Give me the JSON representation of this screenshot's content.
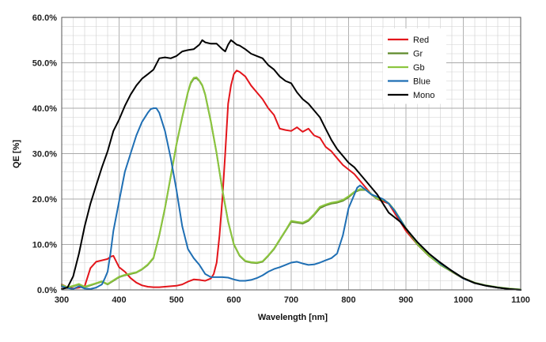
{
  "chart_data": {
    "type": "line",
    "title": "",
    "xlabel": "Wavelength [nm]",
    "ylabel": "QE [%]",
    "xlim": [
      300,
      1100
    ],
    "ylim": [
      0,
      60
    ],
    "x_ticks": [
      "300",
      "400",
      "500",
      "600",
      "700",
      "800",
      "900",
      "1000",
      "1100"
    ],
    "y_ticks": [
      "0.0%",
      "10.0%",
      "20.0%",
      "30.0%",
      "40.0%",
      "50.0%",
      "60.0%"
    ],
    "grid": "on",
    "legend": "top-right",
    "series": [
      {
        "name": "Red",
        "color": "#e3151b",
        "x": [
          300,
          310,
          320,
          330,
          340,
          350,
          360,
          370,
          380,
          385,
          390,
          400,
          410,
          420,
          430,
          440,
          450,
          460,
          470,
          480,
          490,
          500,
          510,
          520,
          530,
          540,
          550,
          560,
          565,
          570,
          575,
          580,
          585,
          590,
          595,
          600,
          605,
          610,
          620,
          630,
          640,
          650,
          660,
          670,
          680,
          690,
          700,
          710,
          720,
          730,
          740,
          750,
          760,
          770,
          780,
          790,
          800,
          810,
          820,
          830,
          840,
          850,
          860,
          870,
          880,
          890,
          900,
          920,
          940,
          960,
          980,
          1000,
          1020,
          1040,
          1060,
          1080,
          1100
        ],
        "values": [
          1.2,
          0.6,
          0.3,
          0.5,
          0.8,
          4.8,
          6.2,
          6.5,
          6.8,
          7.3,
          7.5,
          5.0,
          4.0,
          2.6,
          1.6,
          1.0,
          0.7,
          0.6,
          0.6,
          0.7,
          0.8,
          0.9,
          1.2,
          1.8,
          2.3,
          2.2,
          2.0,
          2.5,
          3.5,
          6.0,
          12.0,
          20.0,
          30.0,
          41.0,
          45.0,
          47.5,
          48.3,
          48.0,
          47.0,
          45.0,
          43.5,
          42.0,
          40.0,
          38.5,
          35.5,
          35.2,
          35.0,
          35.8,
          34.8,
          35.5,
          34.0,
          33.5,
          31.5,
          30.5,
          29.0,
          27.5,
          26.5,
          25.5,
          24.0,
          22.5,
          21.0,
          20.0,
          19.5,
          19.0,
          17.0,
          15.0,
          13.0,
          10.0,
          7.5,
          5.8,
          4.0,
          2.5,
          1.5,
          0.9,
          0.5,
          0.2,
          0.0
        ]
      },
      {
        "name": "Gr",
        "color": "#5e8a2a",
        "x": [
          300,
          310,
          320,
          330,
          340,
          350,
          360,
          370,
          380,
          385,
          390,
          400,
          410,
          420,
          430,
          440,
          450,
          460,
          470,
          480,
          490,
          500,
          510,
          520,
          525,
          530,
          535,
          540,
          545,
          550,
          560,
          570,
          580,
          590,
          600,
          610,
          620,
          630,
          640,
          650,
          660,
          670,
          680,
          690,
          700,
          710,
          720,
          730,
          740,
          750,
          760,
          770,
          780,
          790,
          800,
          810,
          820,
          830,
          840,
          850,
          860,
          870,
          880,
          890,
          900,
          920,
          940,
          960,
          980,
          1000,
          1020,
          1040,
          1060,
          1080,
          1100
        ],
        "values": [
          1.0,
          0.5,
          0.8,
          1.2,
          0.6,
          1.0,
          1.4,
          1.8,
          1.2,
          1.6,
          2.0,
          2.8,
          3.2,
          3.5,
          3.8,
          4.5,
          5.5,
          7.0,
          12.0,
          18.0,
          25.0,
          32.0,
          38.0,
          43.5,
          45.5,
          46.5,
          46.6,
          46.0,
          45.0,
          43.0,
          37.0,
          30.0,
          22.0,
          15.0,
          10.0,
          7.5,
          6.3,
          6.0,
          5.9,
          6.2,
          7.5,
          9.0,
          11.0,
          13.0,
          15.0,
          14.8,
          14.6,
          15.2,
          16.5,
          18.0,
          18.6,
          19.0,
          19.2,
          19.6,
          20.4,
          21.5,
          22.0,
          22.0,
          21.0,
          20.0,
          19.8,
          19.0,
          17.5,
          15.5,
          13.5,
          10.0,
          7.5,
          5.5,
          4.0,
          2.5,
          1.5,
          0.9,
          0.5,
          0.2,
          0.0
        ]
      },
      {
        "name": "Gb",
        "color": "#8cc63f",
        "x": [
          300,
          310,
          320,
          330,
          340,
          350,
          360,
          370,
          380,
          385,
          390,
          400,
          410,
          420,
          430,
          440,
          450,
          460,
          470,
          480,
          490,
          500,
          510,
          520,
          525,
          530,
          535,
          540,
          545,
          550,
          560,
          570,
          580,
          590,
          600,
          610,
          620,
          630,
          640,
          650,
          660,
          670,
          680,
          690,
          700,
          710,
          720,
          730,
          740,
          750,
          760,
          770,
          780,
          790,
          800,
          810,
          820,
          830,
          840,
          850,
          860,
          870,
          880,
          890,
          900,
          920,
          940,
          960,
          980,
          1000,
          1020,
          1040,
          1060,
          1080,
          1100
        ],
        "values": [
          1.1,
          0.6,
          0.9,
          1.3,
          0.7,
          1.1,
          1.5,
          1.9,
          1.3,
          1.7,
          2.1,
          2.9,
          3.3,
          3.6,
          3.9,
          4.6,
          5.6,
          7.1,
          12.1,
          18.1,
          25.1,
          32.1,
          38.1,
          43.6,
          45.7,
          46.7,
          46.8,
          46.1,
          45.1,
          43.1,
          37.1,
          30.1,
          22.1,
          15.1,
          10.1,
          7.6,
          6.4,
          6.1,
          6.0,
          6.3,
          7.6,
          9.1,
          11.1,
          13.1,
          15.2,
          15.0,
          14.8,
          15.4,
          16.7,
          18.3,
          18.8,
          19.2,
          19.4,
          19.8,
          20.6,
          21.6,
          22.2,
          22.1,
          21.1,
          20.1,
          19.9,
          19.1,
          17.6,
          15.6,
          13.6,
          10.1,
          7.6,
          5.6,
          4.1,
          2.6,
          1.6,
          1.0,
          0.6,
          0.3,
          0.1
        ]
      },
      {
        "name": "Blue",
        "color": "#1f6fb4",
        "x": [
          300,
          310,
          320,
          330,
          340,
          350,
          360,
          370,
          375,
          380,
          385,
          390,
          400,
          410,
          420,
          430,
          440,
          450,
          455,
          460,
          465,
          470,
          480,
          490,
          500,
          510,
          520,
          530,
          540,
          550,
          560,
          570,
          580,
          590,
          600,
          610,
          620,
          630,
          640,
          650,
          660,
          670,
          680,
          690,
          700,
          710,
          720,
          730,
          740,
          750,
          760,
          770,
          780,
          790,
          800,
          810,
          815,
          820,
          825,
          830,
          840,
          850,
          860,
          870,
          880,
          890,
          900,
          920,
          940,
          960,
          980,
          1000,
          1020,
          1040,
          1060,
          1080,
          1100
        ],
        "values": [
          0.8,
          0.4,
          0.2,
          0.8,
          0.3,
          0.2,
          0.5,
          1.2,
          2.5,
          4.0,
          8.0,
          13.0,
          19.5,
          26.0,
          30.0,
          34.0,
          37.0,
          39.0,
          39.8,
          40.0,
          40.0,
          39.0,
          35.0,
          29.0,
          22.0,
          14.0,
          9.0,
          7.0,
          5.5,
          3.5,
          2.8,
          2.8,
          2.8,
          2.7,
          2.3,
          2.0,
          2.0,
          2.2,
          2.6,
          3.2,
          4.0,
          4.6,
          5.0,
          5.5,
          6.0,
          6.2,
          5.8,
          5.5,
          5.6,
          6.0,
          6.5,
          7.0,
          8.0,
          12.0,
          18.0,
          21.0,
          22.5,
          23.0,
          22.5,
          22.0,
          21.0,
          20.5,
          20.0,
          19.0,
          17.5,
          15.5,
          13.5,
          10.5,
          8.0,
          5.8,
          4.2,
          2.5,
          1.5,
          0.9,
          0.5,
          0.2,
          0.0
        ]
      },
      {
        "name": "Mono",
        "color": "#000000",
        "x": [
          300,
          310,
          320,
          330,
          340,
          350,
          360,
          370,
          380,
          390,
          400,
          410,
          420,
          430,
          440,
          450,
          460,
          470,
          480,
          490,
          500,
          510,
          520,
          530,
          540,
          545,
          550,
          560,
          570,
          580,
          585,
          590,
          595,
          600,
          605,
          610,
          620,
          630,
          640,
          650,
          660,
          670,
          680,
          690,
          700,
          710,
          720,
          730,
          740,
          750,
          760,
          770,
          780,
          790,
          800,
          810,
          820,
          830,
          840,
          850,
          860,
          870,
          880,
          890,
          900,
          920,
          940,
          960,
          980,
          1000,
          1020,
          1040,
          1060,
          1080,
          1100
        ],
        "values": [
          0.2,
          0.5,
          3.0,
          8.0,
          14.0,
          19.0,
          23.0,
          27.0,
          30.5,
          35.0,
          37.5,
          40.5,
          43.0,
          45.0,
          46.5,
          47.5,
          48.5,
          51.0,
          51.2,
          51.0,
          51.5,
          52.5,
          52.8,
          53.0,
          54.0,
          55.0,
          54.5,
          54.2,
          54.2,
          53.0,
          52.5,
          54.0,
          55.0,
          54.5,
          54.0,
          53.8,
          53.0,
          52.0,
          51.5,
          51.0,
          49.5,
          48.5,
          47.0,
          46.0,
          45.5,
          43.5,
          42.0,
          41.0,
          39.5,
          38.0,
          35.5,
          33.0,
          31.0,
          29.5,
          28.0,
          27.0,
          25.5,
          24.0,
          22.5,
          21.0,
          19.0,
          17.0,
          16.0,
          15.0,
          13.5,
          10.5,
          8.0,
          6.0,
          4.2,
          2.6,
          1.5,
          0.9,
          0.5,
          0.2,
          0.0
        ]
      }
    ]
  }
}
